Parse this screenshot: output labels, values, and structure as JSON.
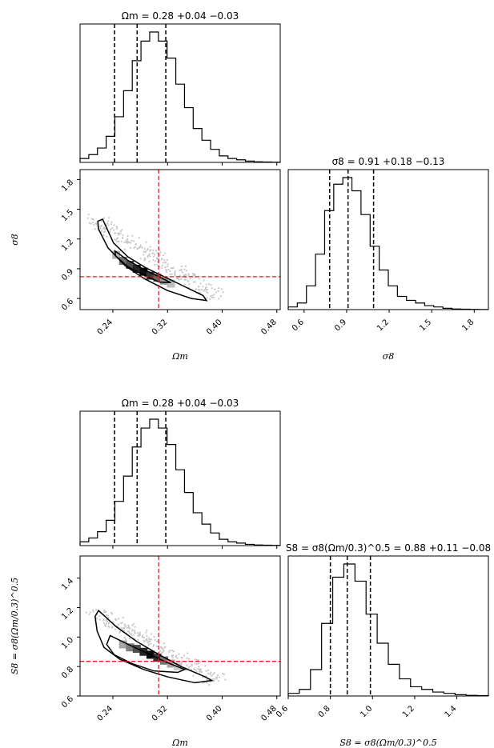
{
  "chart_data": [
    {
      "type": "corner",
      "params": [
        {
          "label": "Ωm",
          "range": [
            0.192,
            0.485
          ],
          "ticks": [
            0.24,
            0.32,
            0.4,
            0.48
          ],
          "tick_labels": [
            "0.24",
            "0.32",
            "0.40",
            "0.48"
          ],
          "title": "Ωm = 0.28 +0.04 −0.03",
          "quantiles": [
            0.2425,
            0.2755,
            0.3175
          ],
          "hist": [
            0.03,
            0.06,
            0.11,
            0.2,
            0.35,
            0.55,
            0.78,
            0.93,
            1.0,
            0.93,
            0.8,
            0.6,
            0.42,
            0.26,
            0.17,
            0.1,
            0.05,
            0.03,
            0.02,
            0.01,
            0.005,
            0.003,
            0.002
          ]
        },
        {
          "label": "σ8",
          "range": [
            0.488,
            1.9
          ],
          "ticks": [
            0.6,
            0.9,
            1.2,
            1.5,
            1.8
          ],
          "tick_labels": [
            "0.6",
            "0.9",
            "1.2",
            "1.5",
            "1.8"
          ],
          "title": "σ8 = 0.91 +0.18 −0.13",
          "quantiles": [
            0.78,
            0.91,
            1.09
          ],
          "hist": [
            0.02,
            0.05,
            0.18,
            0.42,
            0.75,
            0.95,
            1.0,
            0.9,
            0.72,
            0.48,
            0.3,
            0.18,
            0.1,
            0.07,
            0.05,
            0.03,
            0.02,
            0.01,
            0.005,
            0.003,
            0.002,
            0.001
          ]
        }
      ],
      "truth": [
        0.307,
        0.82
      ],
      "contours": [
        [
          [
            0.225,
            1.4
          ],
          [
            0.241,
            1.16
          ],
          [
            0.262,
            1.02
          ],
          [
            0.288,
            0.91
          ],
          [
            0.318,
            0.81
          ],
          [
            0.345,
            0.72
          ],
          [
            0.372,
            0.63
          ],
          [
            0.377,
            0.58
          ],
          [
            0.355,
            0.6
          ],
          [
            0.32,
            0.68
          ],
          [
            0.286,
            0.8
          ],
          [
            0.258,
            0.93
          ],
          [
            0.233,
            1.11
          ],
          [
            0.219,
            1.3
          ],
          [
            0.218,
            1.38
          ]
        ],
        [
          [
            0.243,
            1.08
          ],
          [
            0.262,
            0.985
          ],
          [
            0.287,
            0.887
          ],
          [
            0.313,
            0.8
          ],
          [
            0.325,
            0.76
          ],
          [
            0.308,
            0.765
          ],
          [
            0.284,
            0.84
          ],
          [
            0.262,
            0.92
          ],
          [
            0.244,
            1.03
          ]
        ]
      ],
      "hist2d_bins": [
        [
          0.245,
          1.04,
          0.3
        ],
        [
          0.255,
          0.98,
          0.55
        ],
        [
          0.265,
          0.94,
          0.7
        ],
        [
          0.275,
          0.9,
          0.85
        ],
        [
          0.285,
          0.87,
          0.95
        ],
        [
          0.295,
          0.83,
          0.8
        ],
        [
          0.305,
          0.81,
          0.6
        ],
        [
          0.315,
          0.78,
          0.4
        ],
        [
          0.325,
          0.75,
          0.25
        ]
      ]
    },
    {
      "type": "corner",
      "params": [
        {
          "label": "Ωm",
          "range": [
            0.192,
            0.485
          ],
          "ticks": [
            0.24,
            0.32,
            0.4,
            0.48
          ],
          "tick_labels": [
            "0.24",
            "0.32",
            "0.40",
            "0.48"
          ],
          "title": "Ωm = 0.28 +0.04 −0.03",
          "quantiles": [
            0.2425,
            0.2755,
            0.3175
          ],
          "hist": [
            0.03,
            0.06,
            0.11,
            0.2,
            0.35,
            0.55,
            0.78,
            0.93,
            1.0,
            0.93,
            0.8,
            0.6,
            0.42,
            0.26,
            0.17,
            0.1,
            0.05,
            0.03,
            0.02,
            0.01,
            0.005,
            0.003,
            0.002
          ]
        },
        {
          "label": "S8 = σ8(Ωm/0.3)^0.5",
          "range": [
            0.6,
            1.55
          ],
          "ticks": [
            0.6,
            0.8,
            1.0,
            1.2,
            1.4
          ],
          "tick_labels": [
            "0.6",
            "0.8",
            "1.0",
            "1.2",
            "1.4"
          ],
          "title": "S8 = σ8(Ωm/0.3)^0.5 = 0.88 +0.11 −0.08",
          "quantiles": [
            0.8,
            0.88,
            0.99
          ],
          "hist": [
            0.02,
            0.05,
            0.2,
            0.55,
            0.9,
            1.0,
            0.87,
            0.62,
            0.4,
            0.24,
            0.13,
            0.07,
            0.05,
            0.03,
            0.02,
            0.01,
            0.005,
            0.003
          ]
        }
      ],
      "truth": [
        0.307,
        0.835
      ],
      "contours": [
        [
          [
            0.219,
            1.18
          ],
          [
            0.245,
            1.07
          ],
          [
            0.275,
            0.97
          ],
          [
            0.308,
            0.88
          ],
          [
            0.34,
            0.8
          ],
          [
            0.375,
            0.73
          ],
          [
            0.385,
            0.705
          ],
          [
            0.36,
            0.69
          ],
          [
            0.32,
            0.73
          ],
          [
            0.285,
            0.78
          ],
          [
            0.25,
            0.85
          ],
          [
            0.227,
            0.93
          ],
          [
            0.217,
            1.04
          ],
          [
            0.214,
            1.14
          ]
        ],
        [
          [
            0.236,
            1.01
          ],
          [
            0.258,
            0.96
          ],
          [
            0.29,
            0.89
          ],
          [
            0.318,
            0.83
          ],
          [
            0.345,
            0.78
          ],
          [
            0.335,
            0.76
          ],
          [
            0.3,
            0.77
          ],
          [
            0.268,
            0.82
          ],
          [
            0.242,
            0.88
          ],
          [
            0.231,
            0.95
          ]
        ]
      ],
      "hist2d_bins": [
        [
          0.255,
          0.95,
          0.35
        ],
        [
          0.265,
          0.93,
          0.5
        ],
        [
          0.275,
          0.92,
          0.7
        ],
        [
          0.285,
          0.9,
          0.85
        ],
        [
          0.295,
          0.88,
          0.95
        ],
        [
          0.305,
          0.86,
          0.8
        ],
        [
          0.315,
          0.84,
          0.55
        ],
        [
          0.325,
          0.82,
          0.35
        ],
        [
          0.335,
          0.8,
          0.2
        ]
      ]
    }
  ]
}
